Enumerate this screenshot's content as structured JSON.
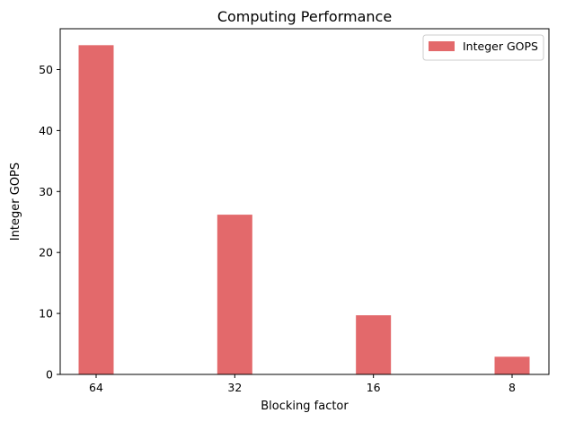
{
  "chart_data": {
    "type": "bar",
    "title": "Computing Performance",
    "xlabel": "Blocking factor",
    "ylabel": "Integer GOPS",
    "categories": [
      "64",
      "32",
      "16",
      "8"
    ],
    "series": [
      {
        "name": "Integer GOPS",
        "values": [
          54.0,
          26.2,
          9.7,
          2.9
        ],
        "color": "#e3696b"
      }
    ],
    "ylim": [
      0,
      56.7
    ],
    "yticks": [
      0,
      10,
      20,
      30,
      40,
      50
    ],
    "legend_position": "top-right",
    "grid": false
  }
}
